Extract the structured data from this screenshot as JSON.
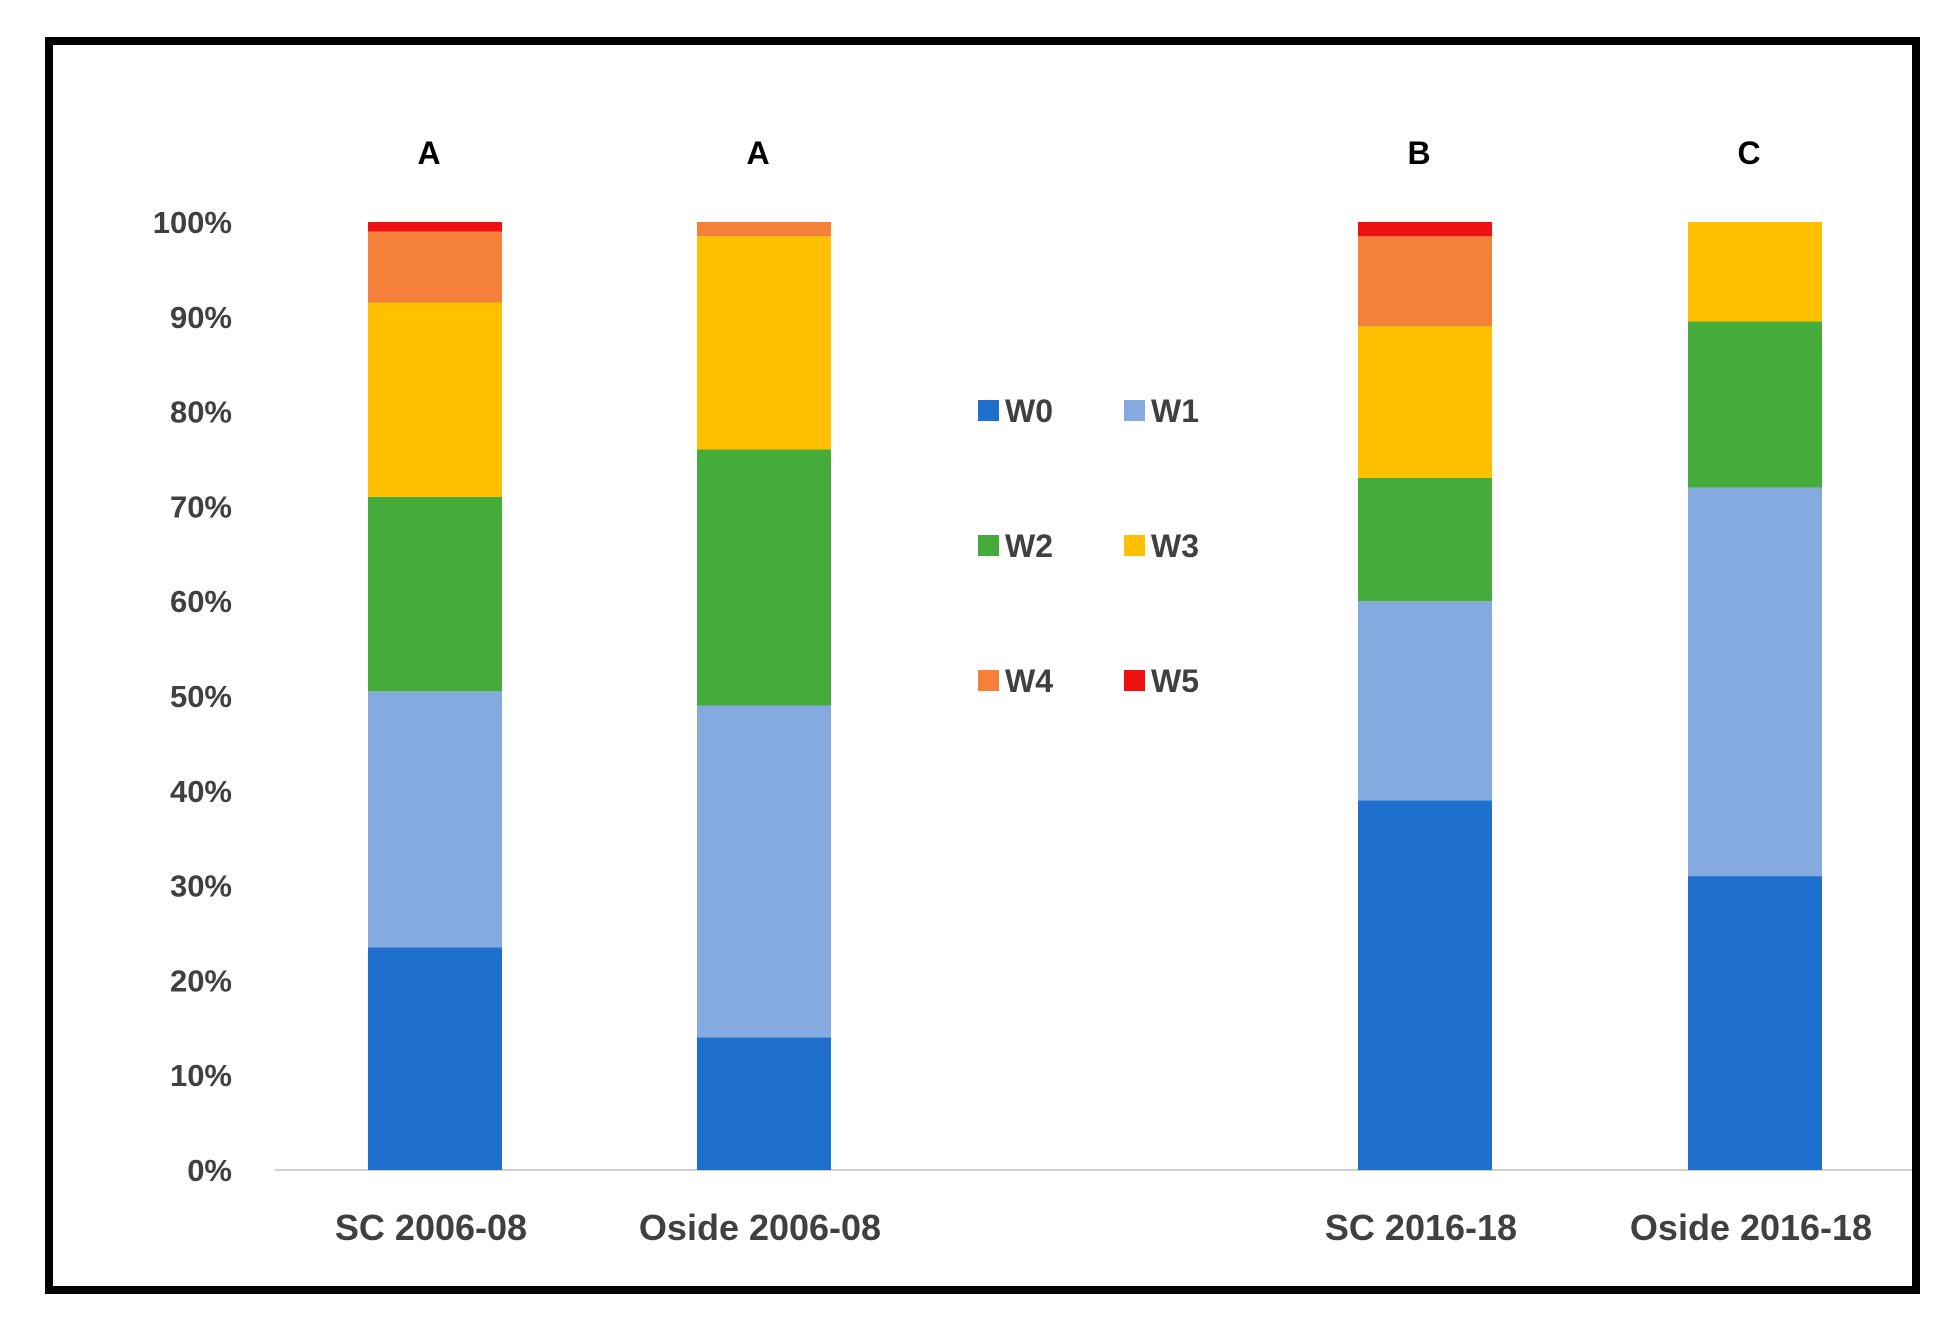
{
  "chart_data": {
    "type": "bar",
    "stacked": true,
    "percent": true,
    "categories": [
      "SC 2006-08",
      "Oside 2006-08",
      "SC 2016-18",
      "Oside 2016-18"
    ],
    "significance_letters": [
      "A",
      "A",
      "B",
      "C"
    ],
    "series": [
      {
        "name": "W0",
        "color": "#1f6fcf",
        "values": [
          23.5,
          14.0,
          39.0,
          31.0
        ]
      },
      {
        "name": "W1",
        "color": "#85aadf",
        "values": [
          27.0,
          35.0,
          21.0,
          41.0
        ]
      },
      {
        "name": "W2",
        "color": "#45ab3a",
        "values": [
          20.5,
          27.0,
          13.0,
          17.5
        ]
      },
      {
        "name": "W3",
        "color": "#ffc000",
        "values": [
          20.5,
          22.5,
          16.0,
          10.5
        ]
      },
      {
        "name": "W4",
        "color": "#f4803a",
        "values": [
          7.5,
          1.5,
          9.5,
          0.0
        ]
      },
      {
        "name": "W5",
        "color": "#ee1111",
        "values": [
          1.0,
          0.0,
          1.5,
          0.0
        ]
      }
    ],
    "ylim": [
      0,
      100
    ],
    "yticks": [
      "0%",
      "10%",
      "20%",
      "30%",
      "40%",
      "50%",
      "60%",
      "70%",
      "80%",
      "90%",
      "100%"
    ],
    "title": "",
    "xlabel": "",
    "ylabel": "",
    "legend_position": "center"
  }
}
